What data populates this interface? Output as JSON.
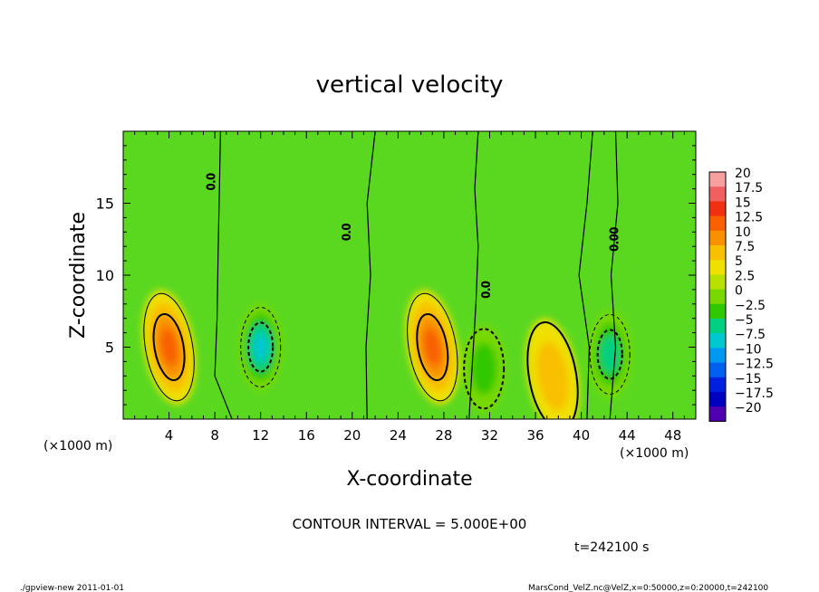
{
  "chart_data": {
    "type": "heatmap",
    "title": "vertical velocity",
    "xlabel": "X-coordinate",
    "ylabel": "Z-coordinate",
    "x_scale_label": "(×1000 m)",
    "y_scale_label": "(×1000 m)",
    "xlim": [
      0,
      50
    ],
    "ylim": [
      0,
      20
    ],
    "x_ticks": [
      4,
      8,
      12,
      16,
      20,
      24,
      28,
      32,
      36,
      40,
      44,
      48
    ],
    "y_ticks": [
      5,
      10,
      15
    ],
    "contour_interval_text": "CONTOUR INTERVAL = 5.000E+00",
    "contour_labels": [
      "0.0",
      "0.0",
      "0.0",
      "0.00"
    ],
    "time_text": "t=242100 s",
    "colorbar": {
      "levels": [
        "20",
        "17.5",
        "15",
        "12.5",
        "10",
        "7.5",
        "5",
        "2.5",
        "0",
        "−2.5",
        "−5",
        "−7.5",
        "−10",
        "−12.5",
        "−15",
        "−17.5",
        "−20"
      ],
      "colors": [
        "#f8a0a0",
        "#f06060",
        "#f03010",
        "#f86000",
        "#f89000",
        "#f8c000",
        "#f0e000",
        "#b8e000",
        "#78d800",
        "#30c800",
        "#00d080",
        "#00c8d0",
        "#0098f0",
        "#0060f0",
        "#0020e0",
        "#0000c0",
        "#5000b0"
      ]
    },
    "features": [
      {
        "kind": "updraft",
        "x": 4,
        "z": 5,
        "peak": 10
      },
      {
        "kind": "downdraft",
        "x": 12,
        "z": 5,
        "peak": -10
      },
      {
        "kind": "updraft",
        "x": 27,
        "z": 5,
        "peak": 10
      },
      {
        "kind": "downdraft",
        "x": 31.5,
        "z": 3.5,
        "peak": -5
      },
      {
        "kind": "updraft",
        "x": 37.5,
        "z": 3,
        "peak": 5
      },
      {
        "kind": "downdraft",
        "x": 42.5,
        "z": 4.5,
        "peak": -7.5
      }
    ]
  },
  "footer": {
    "left": "./gpview-new  2011-01-01",
    "right": "MarsCond_VelZ.nc@VelZ,x=0:50000,z=0:20000,t=242100"
  }
}
